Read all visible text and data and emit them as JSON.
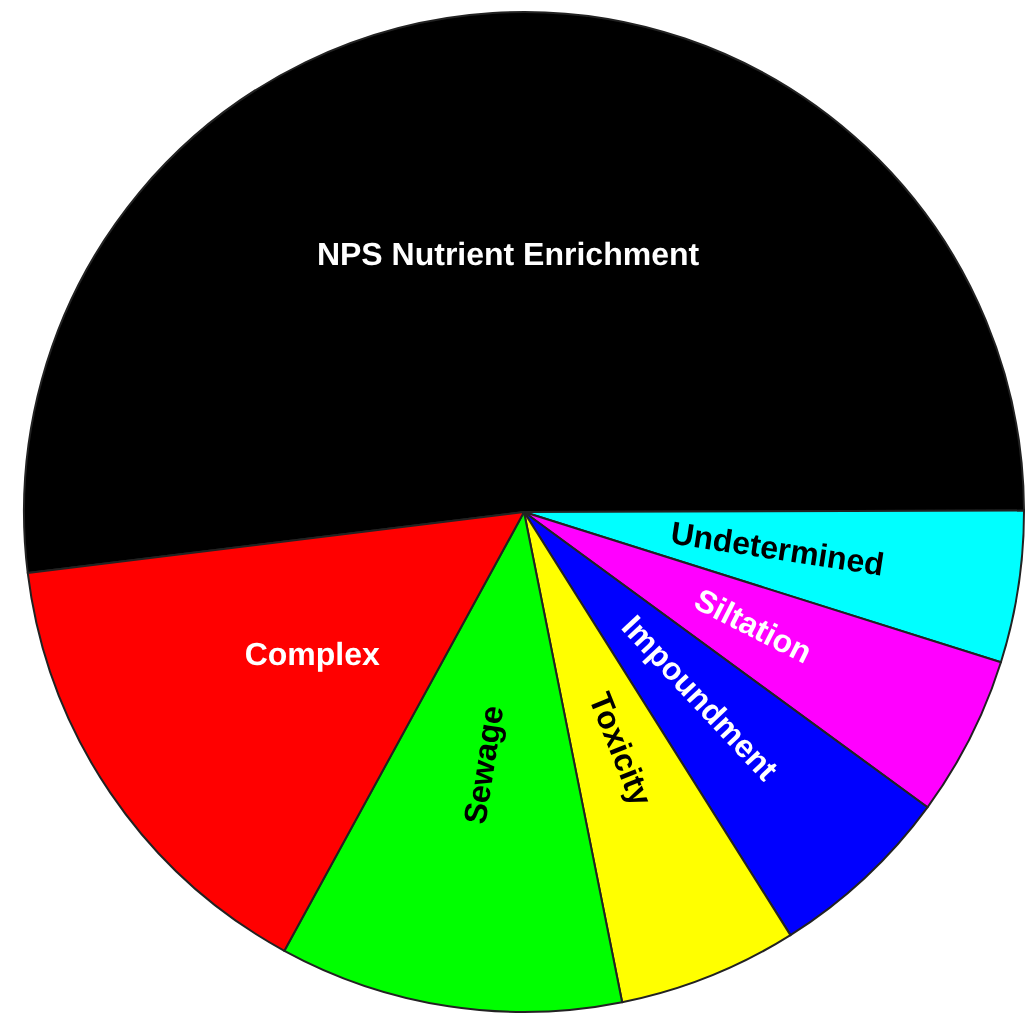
{
  "chart_data": {
    "type": "pie",
    "categories": [
      "NPS Nutrient Enrichment",
      "Undetermined",
      "Siltation",
      "Impoundment",
      "Toxicity",
      "Sewage",
      "Complex"
    ],
    "values": [
      51.9,
      4.9,
      5.2,
      6.0,
      5.8,
      11.1,
      15.1
    ],
    "colors": [
      "#000000",
      "#00ffff",
      "#ff00ff",
      "#0000ff",
      "#ffff00",
      "#00ff00",
      "#ff0000"
    ],
    "data_labels": false
  }
}
